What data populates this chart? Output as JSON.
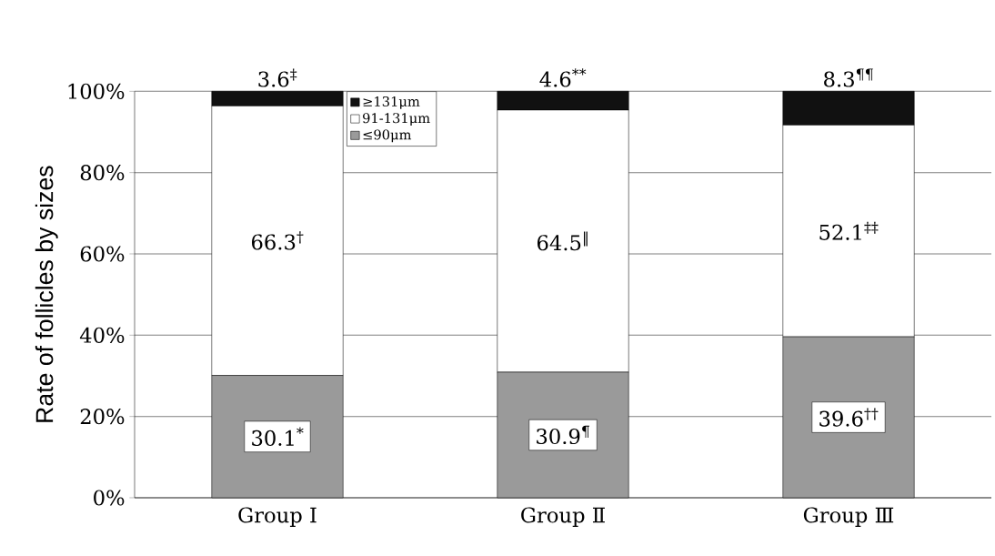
{
  "chart_data": {
    "type": "bar",
    "stacked": true,
    "ylabel": "Rate of follicles by sizes",
    "categories": [
      "Group Ⅰ",
      "Group Ⅱ",
      "Group Ⅲ"
    ],
    "series": [
      {
        "name": "≤90μm",
        "color": "#9a9a9a",
        "values": [
          30.1,
          30.9,
          39.6
        ],
        "value_labels": [
          "30.1$^{*}$",
          "30.9$^{¶}$",
          "39.6$^{††}$"
        ]
      },
      {
        "name": "91-131μm",
        "color": "#ffffff",
        "values": [
          66.3,
          64.5,
          52.1
        ],
        "value_labels": [
          "66.3$^{†}$",
          "64.5$^{‖}$",
          "52.1$^{‡‡}$"
        ]
      },
      {
        "name": "≥131μm",
        "color": "#111111",
        "values": [
          3.6,
          4.6,
          8.3
        ],
        "value_labels": [
          "3.6$^{‡}$",
          "4.6$^{**}$",
          "8.3$^{¶¶}$"
        ]
      }
    ],
    "ylim": [
      0,
      100
    ],
    "yticks": [
      {
        "value": 0,
        "label": "0%"
      },
      {
        "value": 20,
        "label": "20%"
      },
      {
        "value": 40,
        "label": "40%"
      },
      {
        "value": 60,
        "label": "60%"
      },
      {
        "value": 80,
        "label": "80%"
      },
      {
        "value": 100,
        "label": "100%"
      }
    ],
    "grid": "y",
    "legend": "top"
  }
}
